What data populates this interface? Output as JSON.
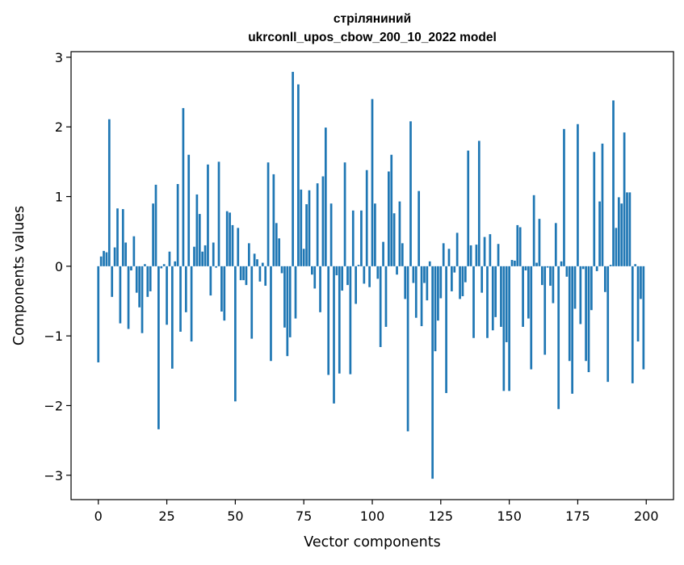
{
  "chart_data": {
    "type": "bar",
    "title": "стріляниний",
    "subtitle": "ukrconll_upos_cbow_200_10_2022 model",
    "xlabel": "Vector components",
    "ylabel": "Components values",
    "xlim": [
      -9.95,
      209.95
    ],
    "ylim": [
      -3.35,
      3.08
    ],
    "xticks": [
      0,
      25,
      50,
      75,
      100,
      125,
      150,
      175,
      200
    ],
    "yticks": [
      -3,
      -2,
      -1,
      0,
      1,
      2,
      3
    ],
    "grid": false,
    "legend": "none",
    "bar_color": "#1f77b4",
    "x": [
      0,
      1,
      2,
      3,
      4,
      5,
      6,
      7,
      8,
      9,
      10,
      11,
      12,
      13,
      14,
      15,
      16,
      17,
      18,
      19,
      20,
      21,
      22,
      23,
      24,
      25,
      26,
      27,
      28,
      29,
      30,
      31,
      32,
      33,
      34,
      35,
      36,
      37,
      38,
      39,
      40,
      41,
      42,
      43,
      44,
      45,
      46,
      47,
      48,
      49,
      50,
      51,
      52,
      53,
      54,
      55,
      56,
      57,
      58,
      59,
      60,
      61,
      62,
      63,
      64,
      65,
      66,
      67,
      68,
      69,
      70,
      71,
      72,
      73,
      74,
      75,
      76,
      77,
      78,
      79,
      80,
      81,
      82,
      83,
      84,
      85,
      86,
      87,
      88,
      89,
      90,
      91,
      92,
      93,
      94,
      95,
      96,
      97,
      98,
      99,
      100,
      101,
      102,
      103,
      104,
      105,
      106,
      107,
      108,
      109,
      110,
      111,
      112,
      113,
      114,
      115,
      116,
      117,
      118,
      119,
      120,
      121,
      122,
      123,
      124,
      125,
      126,
      127,
      128,
      129,
      130,
      131,
      132,
      133,
      134,
      135,
      136,
      137,
      138,
      139,
      140,
      141,
      142,
      143,
      144,
      145,
      146,
      147,
      148,
      149,
      150,
      151,
      152,
      153,
      154,
      155,
      156,
      157,
      158,
      159,
      160,
      161,
      162,
      163,
      164,
      165,
      166,
      167,
      168,
      169,
      170,
      171,
      172,
      173,
      174,
      175,
      176,
      177,
      178,
      179,
      180,
      181,
      182,
      183,
      184,
      185,
      186,
      187,
      188,
      189,
      190,
      191,
      192,
      193,
      194,
      195,
      196,
      197,
      198,
      199
    ],
    "values": [
      -1.38,
      0.14,
      0.22,
      0.2,
      2.11,
      -0.44,
      0.27,
      0.83,
      -0.82,
      0.82,
      0.34,
      -0.9,
      -0.06,
      0.43,
      -0.38,
      -0.59,
      -0.96,
      0.03,
      -0.44,
      -0.36,
      0.9,
      1.17,
      -2.34,
      -0.03,
      0.03,
      -0.84,
      0.21,
      -1.47,
      0.07,
      1.18,
      -0.94,
      2.27,
      -0.66,
      1.6,
      -1.08,
      0.28,
      1.03,
      0.75,
      0.21,
      0.3,
      1.46,
      -0.42,
      0.34,
      -0.02,
      1.5,
      -0.65,
      -0.78,
      0.79,
      0.77,
      0.59,
      -1.94,
      0.55,
      -0.2,
      -0.2,
      -0.27,
      0.33,
      -1.04,
      0.18,
      0.1,
      -0.22,
      0.05,
      -0.28,
      1.49,
      -1.36,
      1.32,
      0.62,
      0.4,
      -0.1,
      -0.88,
      -1.29,
      -1.02,
      2.79,
      -0.75,
      2.61,
      1.1,
      0.25,
      0.89,
      1.09,
      -0.12,
      -0.32,
      1.19,
      -0.66,
      1.29,
      1.99,
      -1.56,
      0.9,
      -1.97,
      -0.13,
      -1.54,
      -0.35,
      1.49,
      -0.27,
      -1.55,
      0.8,
      -0.54,
      0.02,
      0.8,
      -0.25,
      1.38,
      -0.3,
      2.4,
      0.9,
      -0.18,
      -1.16,
      0.35,
      -0.87,
      1.36,
      1.6,
      0.76,
      -0.12,
      0.93,
      0.33,
      -0.47,
      -2.37,
      2.08,
      -0.24,
      -0.74,
      1.08,
      -0.86,
      -0.24,
      -0.49,
      0.07,
      -3.05,
      -1.22,
      -0.78,
      -0.46,
      0.33,
      -1.82,
      0.25,
      -0.36,
      -0.09,
      0.48,
      -0.47,
      -0.43,
      -0.23,
      1.66,
      0.3,
      -1.03,
      0.31,
      1.8,
      -0.38,
      0.42,
      -1.03,
      0.46,
      -0.92,
      -0.73,
      0.32,
      -0.87,
      -1.79,
      -1.09,
      -1.79,
      0.09,
      0.08,
      0.59,
      0.56,
      -0.87,
      -0.06,
      -0.75,
      -1.48,
      1.02,
      0.05,
      0.68,
      -0.27,
      -1.27,
      -0.02,
      -0.28,
      -0.53,
      0.62,
      -2.05,
      0.07,
      1.97,
      -0.15,
      -1.36,
      -1.83,
      -0.61,
      2.04,
      -0.83,
      -0.04,
      -1.36,
      -1.52,
      -0.63,
      1.64,
      -0.07,
      0.93,
      1.76,
      -0.37,
      -1.66,
      0.02,
      2.38,
      0.55,
      0.99,
      0.9,
      1.92,
      1.06,
      1.06,
      -1.68,
      0.03,
      -1.08,
      -0.47,
      -1.48
    ]
  }
}
